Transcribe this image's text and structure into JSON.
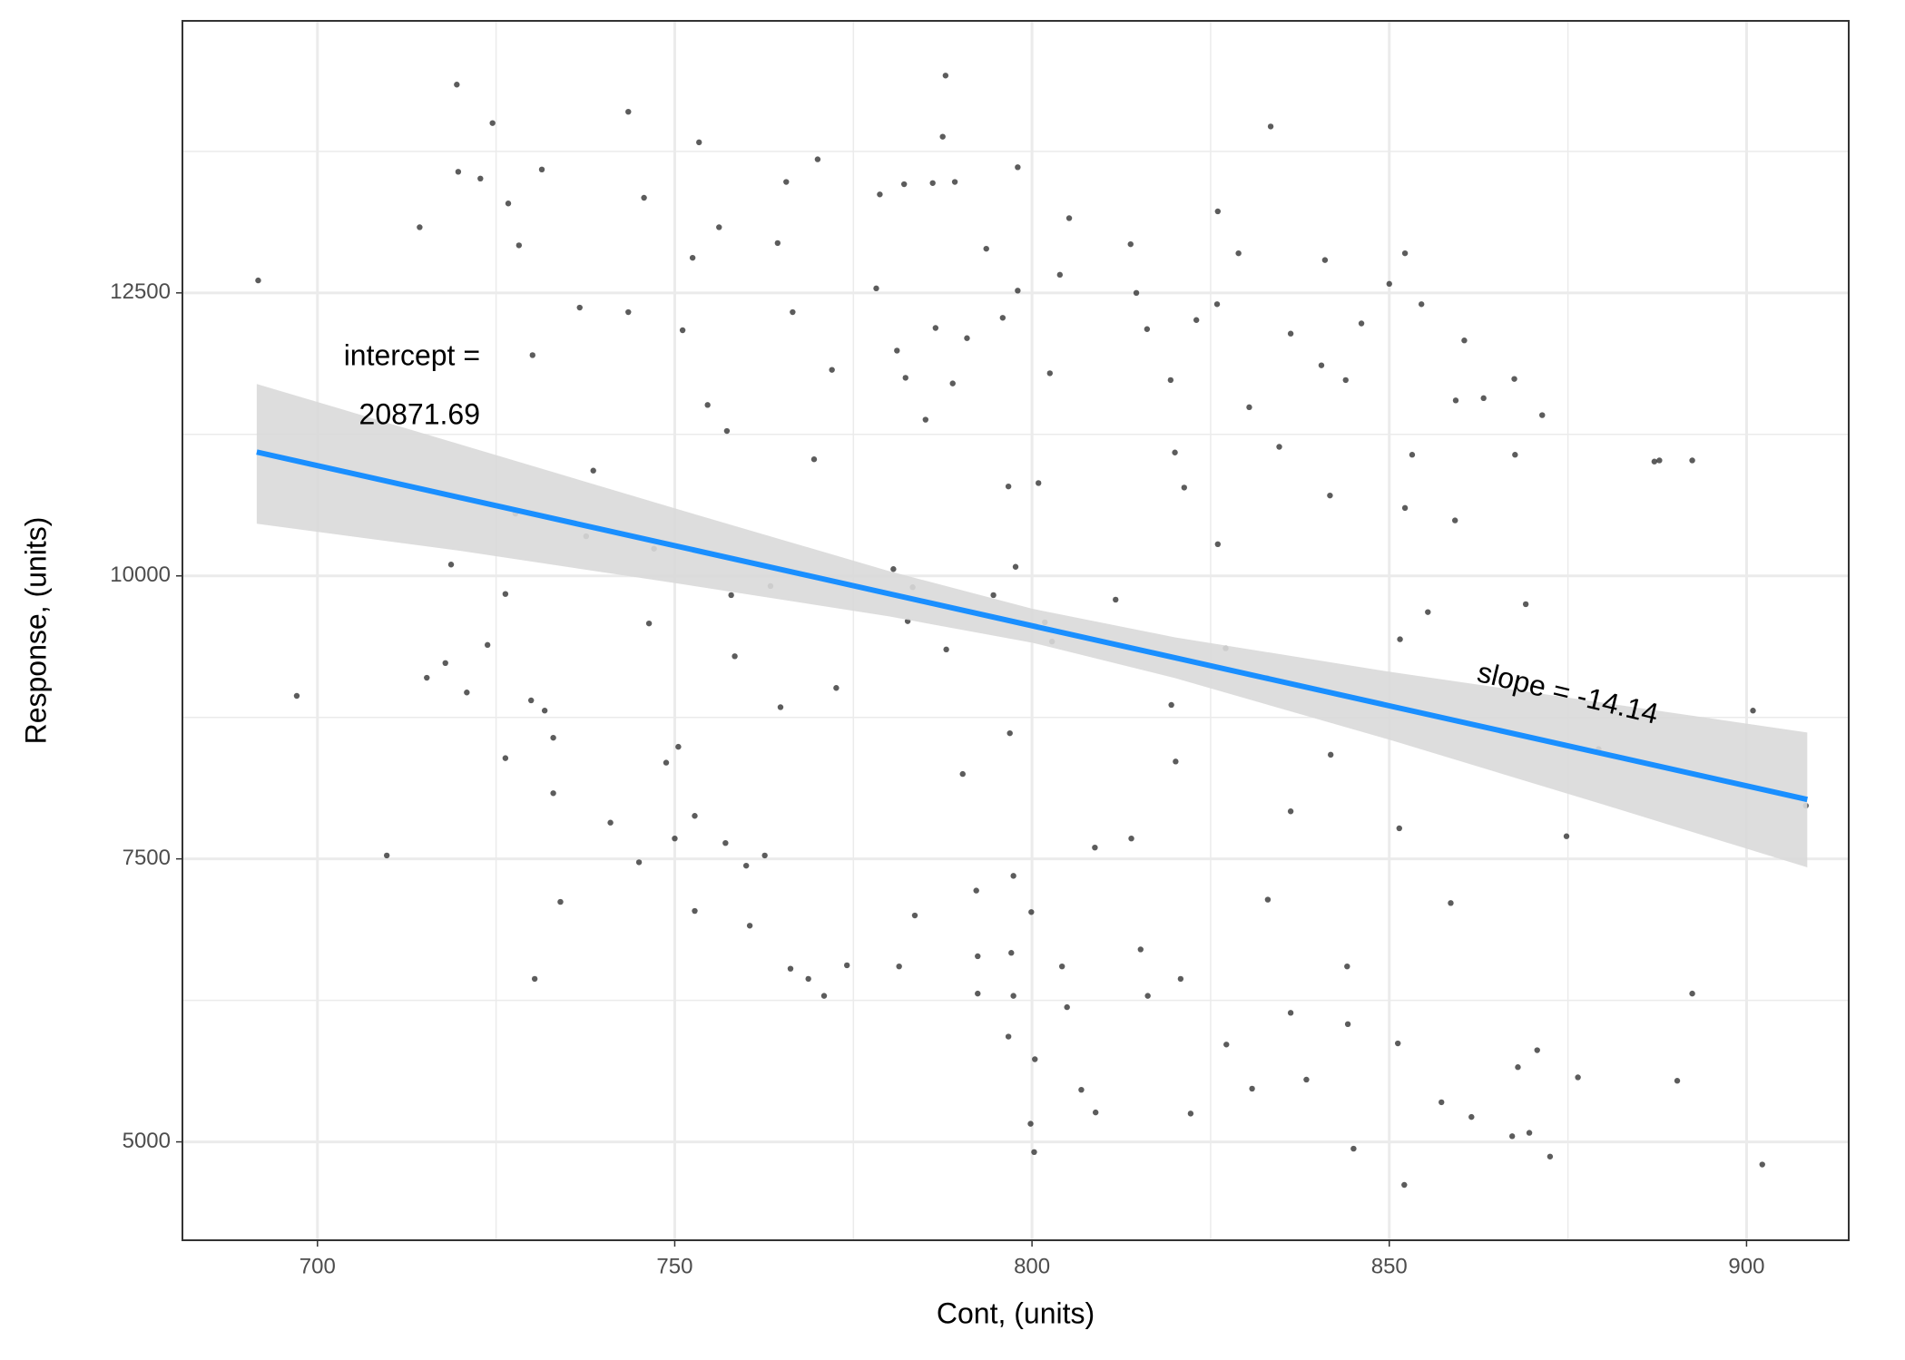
{
  "chart_data": {
    "type": "scatter",
    "xlabel": "Cont, (units)",
    "ylabel": "Response, (units)",
    "xlim": [
      681.1,
      914.3
    ],
    "ylim": [
      4131,
      14903
    ],
    "xticks": [
      700,
      750,
      800,
      850,
      900
    ],
    "yticks": [
      5000,
      7500,
      10000,
      12500
    ],
    "grid": true,
    "series": [
      {
        "color": "#333333",
        "x": [
          691.7,
          697.1,
          709.7,
          714.3,
          719.5,
          719.7,
          724.5,
          722.8,
          726.7,
          728.2,
          731.4,
          730.1,
          727.7,
          726.3,
          723.8,
          718.7,
          715.3,
          717.9,
          720.9,
          726.3,
          729.9,
          731.8,
          733.0,
          733.0,
          734.0,
          730.4,
          737.6,
          738.6,
          736.7,
          743.5,
          743.5,
          745.7,
          741.0,
          745.0,
          746.4,
          747.1,
          748.8,
          750.5,
          750.0,
          752.8,
          752.8,
          753.4,
          752.5,
          751.1,
          754.6,
          756.2,
          757.3,
          757.9,
          758.4,
          757.1,
          760.0,
          760.5,
          762.6,
          763.4,
          764.4,
          765.6,
          766.5,
          764.8,
          766.2,
          768.7,
          770.9,
          770.0,
          772.0,
          769.5,
          772.6,
          774.1,
          778.2,
          778.7,
          782.1,
          781.1,
          782.3,
          780.6,
          783.3,
          782.6,
          783.6,
          781.4,
          786.1,
          787.9,
          787.5,
          789.2,
          786.5,
          785.1,
          788.9,
          790.9,
          788.0,
          790.3,
          792.2,
          792.4,
          792.4,
          793.6,
          794.6,
          795.9,
          798.0,
          798.0,
          796.7,
          797.7,
          796.9,
          797.4,
          797.1,
          797.4,
          796.7,
          799.9,
          800.4,
          799.8,
          800.3,
          800.9,
          801.8,
          802.5,
          802.8,
          805.2,
          803.9,
          804.2,
          804.9,
          806.9,
          808.9,
          808.8,
          811.7,
          813.8,
          814.6,
          813.9,
          815.2,
          816.2,
          816.1,
          819.4,
          820.0,
          821.3,
          819.5,
          820.1,
          820.8,
          822.2,
          823.0,
          825.9,
          826.0,
          826.0,
          827.1,
          827.2,
          830.8,
          828.9,
          830.4,
          833.4,
          832.9,
          833.0,
          836.2,
          834.6,
          836.2,
          836.2,
          838.4,
          841.0,
          840.5,
          841.7,
          841.8,
          844.1,
          844.2,
          845.0,
          846.1,
          843.9,
          850.0,
          852.2,
          854.5,
          852.2,
          851.5,
          853.2,
          851.4,
          851.2,
          852.1,
          855.4,
          857.3,
          859.3,
          860.5,
          859.2,
          858.6,
          861.5,
          863.2,
          867.5,
          867.6,
          869.1,
          868.0,
          871.4,
          870.7,
          872.5,
          874.8,
          876.4,
          879.3,
          887.1,
          887.8,
          890.3,
          892.4,
          892.4,
          900.9,
          902.2,
          908.3,
          867.2,
          869.6
        ],
        "values": [
          12610,
          8940,
          7530,
          13080,
          14340,
          13570,
          14000,
          13510,
          13290,
          12920,
          13590,
          11950,
          10550,
          9840,
          9390,
          10100,
          9100,
          9230,
          8970,
          8390,
          8900,
          8810,
          8570,
          8080,
          7120,
          6440,
          10350,
          10930,
          12370,
          14100,
          12330,
          13340,
          7820,
          7470,
          9580,
          10240,
          8350,
          8490,
          7680,
          7040,
          7880,
          13830,
          12810,
          12170,
          11510,
          13080,
          11280,
          9830,
          9290,
          7640,
          7440,
          6910,
          7530,
          9910,
          12940,
          13480,
          12330,
          8840,
          6530,
          6440,
          6290,
          13680,
          11820,
          11030,
          9010,
          6560,
          12540,
          13370,
          13460,
          11990,
          11750,
          10060,
          9900,
          9600,
          7000,
          6550,
          13470,
          14420,
          13880,
          13480,
          12190,
          11380,
          11700,
          12100,
          9350,
          8250,
          7220,
          6640,
          6310,
          12890,
          9830,
          12280,
          13610,
          12520,
          10790,
          10080,
          8610,
          7350,
          6670,
          6290,
          5930,
          7030,
          5730,
          5160,
          4910,
          10820,
          9590,
          11790,
          9420,
          13160,
          12660,
          6550,
          6190,
          5460,
          5260,
          7600,
          9790,
          12930,
          12500,
          7680,
          6700,
          6290,
          12180,
          11730,
          11090,
          10780,
          8860,
          8360,
          6440,
          5250,
          12260,
          12400,
          13220,
          10280,
          9360,
          5860,
          5470,
          12850,
          11490,
          13970,
          9100,
          7140,
          12140,
          11140,
          7920,
          6140,
          5550,
          12790,
          11860,
          10710,
          8420,
          6550,
          6040,
          4940,
          12230,
          11730,
          12580,
          12850,
          12400,
          10600,
          9440,
          11070,
          7770,
          5870,
          4620,
          9680,
          5350,
          11550,
          12080,
          10490,
          7110,
          5220,
          11570,
          11740,
          11070,
          9750,
          5660,
          11420,
          5810,
          4870,
          7700,
          5570,
          8470,
          11010,
          11020,
          5540,
          6310,
          11020,
          8810,
          4800,
          7970,
          5050,
          5080
        ]
      }
    ],
    "fit": {
      "color": "#1a8fff",
      "x": [
        691.5,
        908.5
      ],
      "y": [
        11094,
        8025
      ]
    },
    "band": {
      "color": "#d9d9d9",
      "x": [
        691.5,
        720,
        750,
        780,
        800,
        820,
        850,
        880,
        908.5
      ],
      "lower": [
        10461,
        10221,
        9937,
        9642,
        9410,
        9097,
        8553,
        7979,
        7425
      ],
      "upper": [
        11695,
        11161,
        10597,
        10042,
        9710,
        9457,
        9153,
        8879,
        8616
      ]
    },
    "annotations": [
      "intercept =",
      "20871.69",
      "slope = -14.14"
    ]
  }
}
